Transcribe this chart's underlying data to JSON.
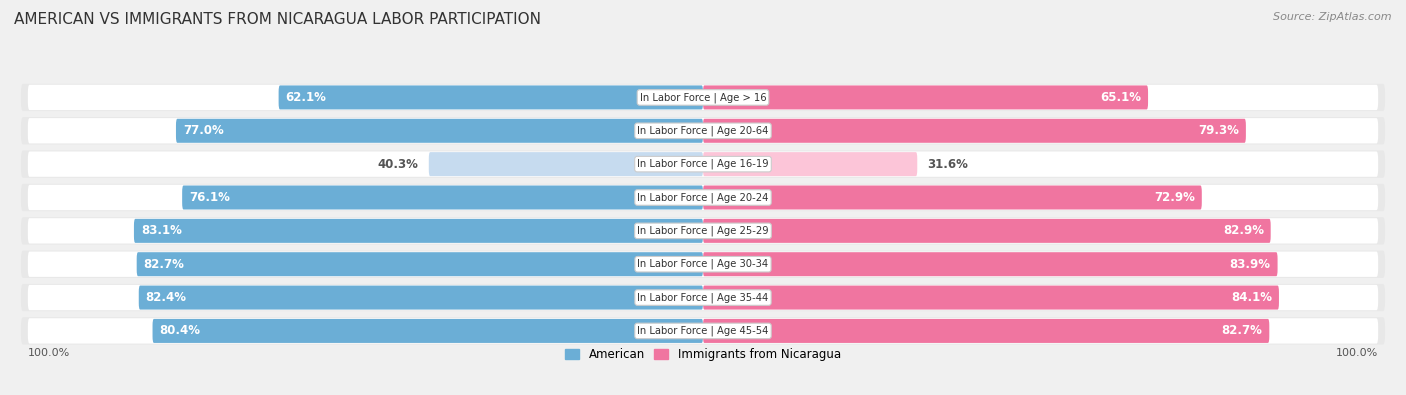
{
  "title": "AMERICAN VS IMMIGRANTS FROM NICARAGUA LABOR PARTICIPATION",
  "source": "Source: ZipAtlas.com",
  "categories": [
    "In Labor Force | Age > 16",
    "In Labor Force | Age 20-64",
    "In Labor Force | Age 16-19",
    "In Labor Force | Age 20-24",
    "In Labor Force | Age 25-29",
    "In Labor Force | Age 30-34",
    "In Labor Force | Age 35-44",
    "In Labor Force | Age 45-54"
  ],
  "american_values": [
    62.1,
    77.0,
    40.3,
    76.1,
    83.1,
    82.7,
    82.4,
    80.4
  ],
  "nicaragua_values": [
    65.1,
    79.3,
    31.6,
    72.9,
    82.9,
    83.9,
    84.1,
    82.7
  ],
  "american_color": "#6baed6",
  "nicaragua_color": "#f075a0",
  "american_light_color": "#c6dbef",
  "nicaragua_light_color": "#fcc5d8",
  "bg_color": "#f0f0f0",
  "row_bg_color": "#e8e8e8",
  "row_inner_color": "#ffffff",
  "legend_american": "American",
  "legend_nicaragua": "Immigrants from Nicaragua",
  "max_value": 100.0,
  "title_fontsize": 11,
  "label_fontsize": 8.5,
  "source_fontsize": 8
}
